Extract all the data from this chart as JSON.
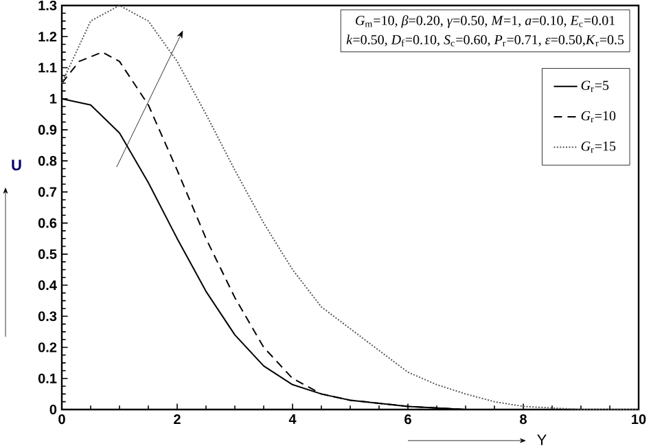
{
  "chart_data": {
    "type": "line",
    "xlabel": "Y",
    "ylabel": "U",
    "xlim": [
      0,
      10
    ],
    "ylim": [
      0,
      1.3
    ],
    "xticks": [
      0,
      2,
      4,
      6,
      8,
      10
    ],
    "yticks": [
      0,
      0.1,
      0.2,
      0.3,
      0.4,
      0.5,
      0.6,
      0.7,
      0.8,
      0.9,
      {
        "value": 1,
        "label": "1"
      },
      1.1,
      1.2,
      1.3
    ],
    "legend": "top right",
    "grid": false,
    "marker": "none",
    "annotations": [
      "*G*$_{m}$=10, *β*=0.20, *γ*=0.50, *M*=1, *a*=0.10, *E*$_{c}$=0.01",
      "*k*=0.50, *D*$_{f}$=0.10, *S*$_{c}$=0.60, *P*$_{r}$=0.71, *ε*=0.50,*K*$_{r}$=0.5"
    ],
    "series": [
      {
        "name": "*G*$_{r}$=5",
        "color": "#000000",
        "line_style": "solid",
        "x": [
          0,
          0.5,
          1,
          1.5,
          2,
          2.5,
          3,
          3.5,
          4,
          4.5,
          5,
          6,
          7,
          8,
          10
        ],
        "values": [
          1.0,
          0.98,
          0.89,
          0.73,
          0.55,
          0.38,
          0.24,
          0.14,
          0.08,
          0.05,
          0.03,
          0.01,
          0,
          0,
          0
        ]
      },
      {
        "name": "*G*$_{r}$=10",
        "color": "#000000",
        "line_style": "dashed",
        "x": [
          0,
          0.3,
          0.7,
          1,
          1.5,
          2,
          2.5,
          3,
          3.5,
          4,
          4.5,
          5,
          6,
          7,
          8,
          10
        ],
        "values": [
          1.05,
          1.12,
          1.15,
          1.12,
          0.98,
          0.77,
          0.55,
          0.36,
          0.2,
          0.1,
          0.05,
          0.03,
          0.01,
          0,
          0,
          0
        ]
      },
      {
        "name": "*G*$_{r}$=15",
        "color": "#555555",
        "line_style": "dotted",
        "x": [
          0,
          0.5,
          1,
          1.5,
          2,
          2.5,
          3,
          3.5,
          4,
          4.5,
          5,
          5.5,
          6,
          6.5,
          7,
          7.5,
          8,
          9,
          10
        ],
        "values": [
          1.05,
          1.25,
          1.3,
          1.25,
          1.12,
          0.95,
          0.77,
          0.6,
          0.45,
          0.33,
          0.26,
          0.19,
          0.12,
          0.08,
          0.05,
          0.025,
          0.01,
          0,
          0
        ]
      }
    ]
  }
}
